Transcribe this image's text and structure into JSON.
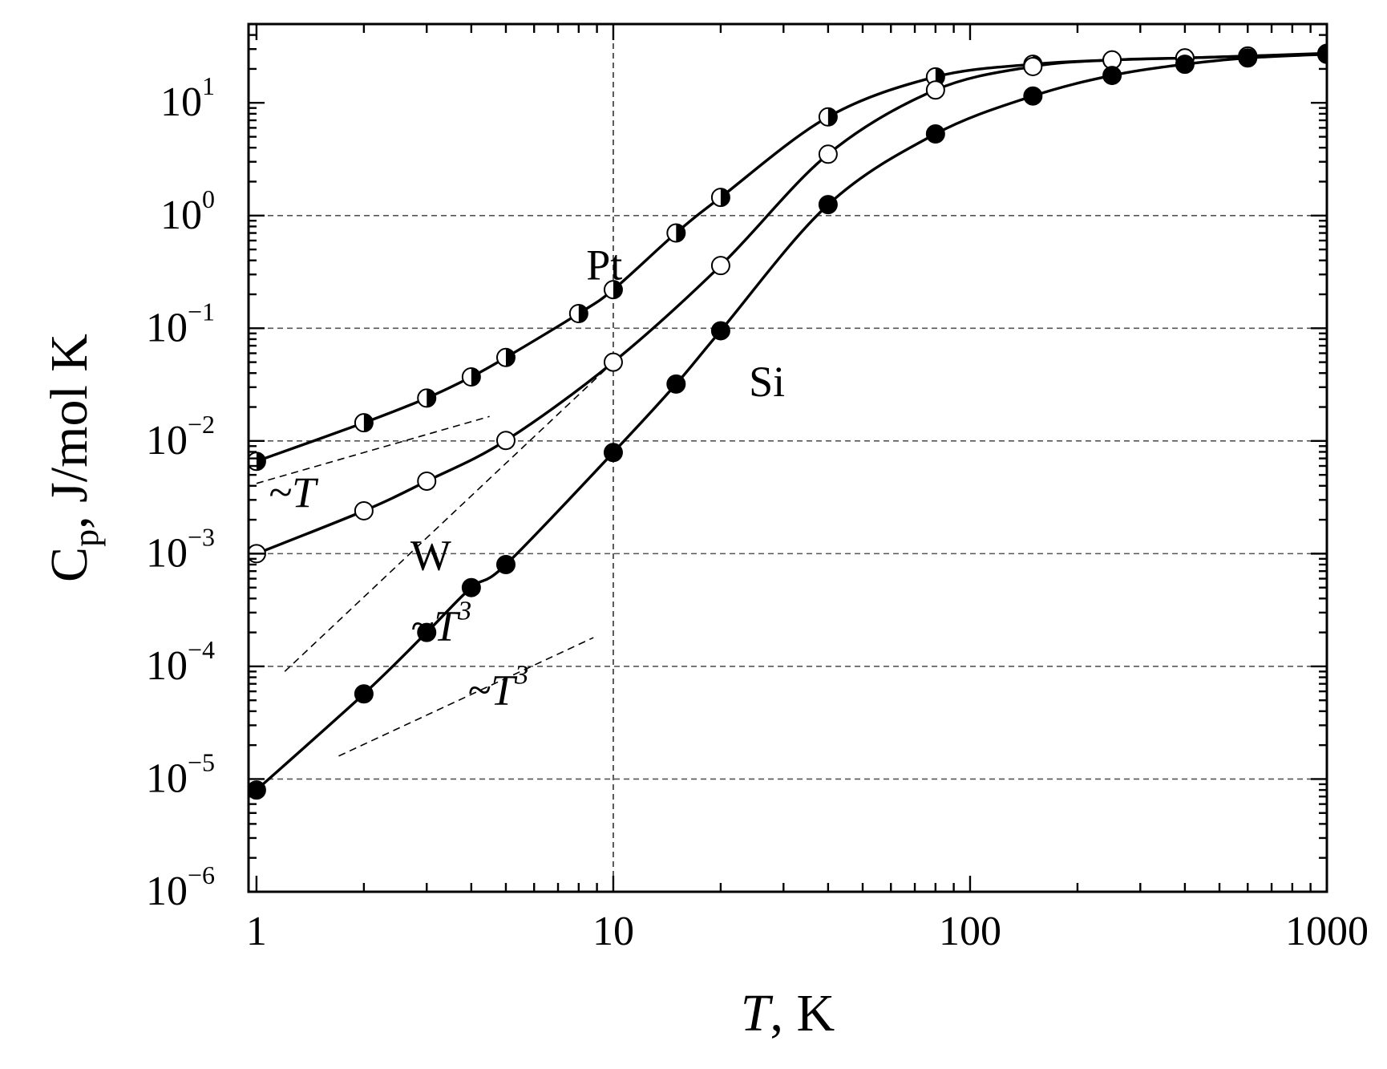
{
  "chart_data": {
    "type": "line",
    "title": "",
    "xlabel": "T, K",
    "xlabel_parts": {
      "var": "T",
      "rest": ", K"
    },
    "ylabel": "Cp, J/mol K",
    "ylabel_parts": {
      "main": "C",
      "sub": "p",
      "rest": ", J/mol K"
    },
    "x_scale": "log",
    "y_scale": "log",
    "xlim": [
      0.95,
      1000
    ],
    "ylim": [
      1e-06,
      50
    ],
    "x_ticks": [
      {
        "value": 1,
        "label": "1"
      },
      {
        "value": 10,
        "label": "10"
      },
      {
        "value": 100,
        "label": "100"
      },
      {
        "value": 1000,
        "label": "1000"
      }
    ],
    "y_ticks": [
      {
        "value": 1e-06,
        "base": "10",
        "exp": "−6"
      },
      {
        "value": 1e-05,
        "base": "10",
        "exp": "−5"
      },
      {
        "value": 0.0001,
        "base": "10",
        "exp": "−4"
      },
      {
        "value": 0.001,
        "base": "10",
        "exp": "−3"
      },
      {
        "value": 0.01,
        "base": "10",
        "exp": "−2"
      },
      {
        "value": 0.1,
        "base": "10",
        "exp": "−1"
      },
      {
        "value": 1,
        "base": "10",
        "exp": "0"
      },
      {
        "value": 10,
        "base": "10",
        "exp": "1"
      }
    ],
    "grid": {
      "y_dashed": [
        1e-05,
        0.0001,
        0.001,
        0.01,
        0.1,
        1
      ],
      "x_dashed": [
        10
      ]
    },
    "series": [
      {
        "name": "Pt",
        "marker": "half-filled",
        "x": [
          1,
          2,
          3,
          4,
          5,
          8,
          10,
          15,
          20,
          40,
          80,
          150,
          250,
          400,
          600,
          1000
        ],
        "y": [
          0.0066,
          0.0145,
          0.024,
          0.037,
          0.055,
          0.135,
          0.22,
          0.7,
          1.45,
          7.5,
          17,
          22,
          24,
          25,
          26,
          27.5
        ]
      },
      {
        "name": "W",
        "marker": "open",
        "x": [
          1,
          2,
          3,
          5,
          10,
          20,
          40,
          80,
          150,
          250,
          400,
          600,
          1000
        ],
        "y": [
          0.001,
          0.0024,
          0.0044,
          0.0101,
          0.05,
          0.36,
          3.5,
          13,
          21,
          24,
          25,
          26,
          27
        ]
      },
      {
        "name": "Si",
        "marker": "filled",
        "x": [
          1,
          2,
          3,
          4,
          5,
          10,
          15,
          20,
          40,
          80,
          150,
          250,
          400,
          600,
          1000
        ],
        "y": [
          8e-06,
          5.7e-05,
          0.0002,
          0.0005,
          0.0008,
          0.0079,
          0.032,
          0.095,
          1.25,
          5.3,
          11.5,
          17.5,
          22,
          25,
          27
        ]
      }
    ],
    "asymptotes": [
      {
        "label": "~T",
        "exp": "",
        "x": [
          1,
          4.5
        ],
        "y": [
          0.0042,
          0.0165
        ],
        "text_at": [
          1.08,
          0.0026
        ]
      },
      {
        "label": "~T",
        "exp": "3",
        "x": [
          1.2,
          10
        ],
        "y": [
          9e-05,
          0.05
        ],
        "text_at": [
          2.7,
          0.00017
        ]
      },
      {
        "label": "~T",
        "exp": "3",
        "x": [
          1.7,
          8.8
        ],
        "y": [
          1.6e-05,
          0.00018
        ],
        "text_at": [
          3.9,
          4.6e-05
        ]
      }
    ],
    "series_labels": [
      {
        "text": "Pt",
        "at": [
          8.4,
          0.27
        ]
      },
      {
        "text": "Si",
        "at": [
          24,
          0.025
        ]
      },
      {
        "text": "W",
        "at": [
          2.7,
          0.00072
        ]
      }
    ]
  }
}
